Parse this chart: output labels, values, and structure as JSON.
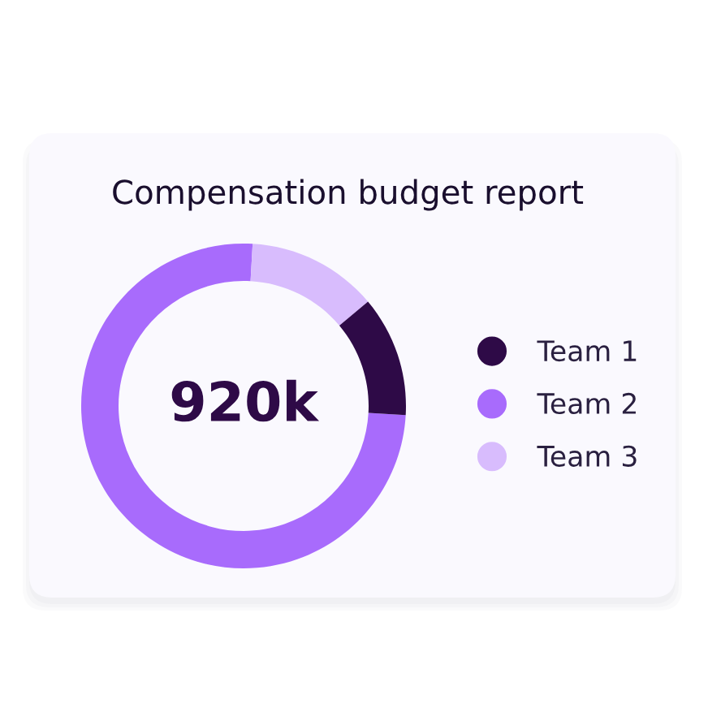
{
  "chart_data": {
    "type": "donut",
    "title": "Compensation budget report",
    "categories": [
      "Team 1",
      "Team 2",
      "Team 3"
    ],
    "values": [
      12,
      75,
      13
    ],
    "colors": [
      "#2e0a47",
      "#a86bfc",
      "#d8bcfd"
    ],
    "annotations": [
      "920k"
    ],
    "legend": "right"
  }
}
